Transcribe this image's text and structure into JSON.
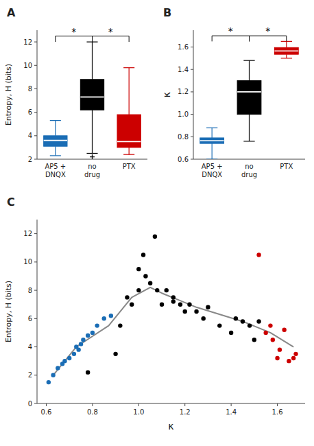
{
  "chart_data": [
    {
      "type": "box",
      "title": "A",
      "categories": [
        "AP5 +\nDNQX",
        "no\ndrug",
        "PTX"
      ],
      "colors": [
        "#1a6db5",
        "#000000",
        "#cc0000"
      ],
      "medians": [
        3.6,
        7.3,
        3.5
      ],
      "q1": [
        3.1,
        6.2,
        3.0
      ],
      "q3": [
        4.0,
        8.8,
        5.8
      ],
      "whislo": [
        2.3,
        2.5,
        2.4
      ],
      "whishi": [
        5.3,
        12.0,
        9.8
      ],
      "fliers": [
        [],
        [
          2.2
        ],
        []
      ],
      "ylabel": "Entropy, H (bits)",
      "ylim": [
        2,
        13
      ],
      "yticks": [
        2,
        4,
        6,
        8,
        10,
        12
      ],
      "annotations": [
        {
          "text": "*",
          "between": [
            "no\ndrug",
            "PTX"
          ],
          "y": 12.5,
          "drop": 0.5
        },
        {
          "text": "*",
          "between": [
            "AP5 +\nDNQX",
            "no\ndrug"
          ],
          "y": 12.5,
          "drop": 0.5
        }
      ]
    },
    {
      "type": "box",
      "title": "B",
      "categories": [
        "AP5 +\nDNQX",
        "no\ndrug",
        "PTX"
      ],
      "colors": [
        "#1a6db5",
        "#000000",
        "#cc0000"
      ],
      "medians": [
        0.765,
        1.2,
        1.565
      ],
      "q1": [
        0.74,
        1.0,
        1.535
      ],
      "q3": [
        0.79,
        1.3,
        1.595
      ],
      "whislo": [
        0.6,
        0.76,
        1.5
      ],
      "whishi": [
        0.88,
        1.48,
        1.65
      ],
      "ylabel": "κ",
      "ylim": [
        0.6,
        1.75
      ],
      "yticks": [
        0.6,
        0.8,
        {
          "value": 1.0,
          "label": "1.0"
        },
        1.2,
        1.4,
        1.6
      ],
      "annotations": [
        {
          "text": "*",
          "between": [
            "no\ndrug",
            "PTX"
          ],
          "y": 1.7,
          "drop": 0.05
        },
        {
          "text": "*",
          "between": [
            "AP5 +\nDNQX",
            "no\ndrug"
          ],
          "y": 1.7,
          "drop": 0.05
        }
      ]
    },
    {
      "type": "scatter",
      "title": "C",
      "xlabel": "κ",
      "ylabel": "Entropy, H (bits)",
      "xlim": [
        0.56,
        1.72
      ],
      "ylim": [
        0,
        13
      ],
      "xticks": [
        0.6,
        0.8,
        {
          "value": 1.0,
          "label": "1.0"
        },
        1.2,
        1.4,
        1.6
      ],
      "yticks": [
        0,
        2,
        4,
        6,
        8,
        10,
        12
      ],
      "series": [
        {
          "type": "scatter",
          "color": "#1a6db5",
          "x": [
            0.61,
            0.63,
            0.65,
            0.67,
            0.68,
            0.7,
            0.72,
            0.73,
            0.74,
            0.75,
            0.76,
            0.78,
            0.8,
            0.82,
            0.85,
            0.88
          ],
          "values": [
            1.5,
            2.0,
            2.5,
            2.8,
            3.0,
            3.2,
            3.5,
            4.0,
            3.8,
            4.2,
            4.5,
            4.8,
            5.0,
            5.5,
            6.0,
            6.2
          ]
        },
        {
          "type": "scatter",
          "color": "#000000",
          "x": [
            0.78,
            0.9,
            0.92,
            0.95,
            0.97,
            1.0,
            1.0,
            1.02,
            1.03,
            1.05,
            1.07,
            1.08,
            1.1,
            1.12,
            1.15,
            1.15,
            1.18,
            1.2,
            1.22,
            1.25,
            1.28,
            1.3,
            1.35,
            1.4,
            1.42,
            1.45,
            1.48,
            1.5,
            1.52
          ],
          "values": [
            2.2,
            3.5,
            5.5,
            7.5,
            7.0,
            8.0,
            9.5,
            10.5,
            9.0,
            8.5,
            11.8,
            8.0,
            7.0,
            8.0,
            7.5,
            7.2,
            7.0,
            6.5,
            7.0,
            6.5,
            6.0,
            6.8,
            5.5,
            5.0,
            6.0,
            5.8,
            5.5,
            4.5,
            5.8
          ]
        },
        {
          "type": "scatter",
          "color": "#cc0000",
          "x": [
            1.52,
            1.55,
            1.57,
            1.58,
            1.6,
            1.61,
            1.63,
            1.65,
            1.67,
            1.68
          ],
          "values": [
            10.5,
            5.0,
            5.5,
            4.5,
            3.2,
            3.8,
            5.2,
            3.0,
            3.2,
            3.5
          ]
        },
        {
          "type": "line",
          "color": "#888888",
          "x": [
            0.63,
            0.73,
            0.87,
            0.97,
            1.05,
            1.1,
            1.25,
            1.45,
            1.57,
            1.67
          ],
          "values": [
            2.0,
            4.0,
            5.5,
            7.5,
            8.2,
            7.8,
            6.8,
            5.8,
            5.0,
            4.0
          ]
        }
      ]
    }
  ]
}
